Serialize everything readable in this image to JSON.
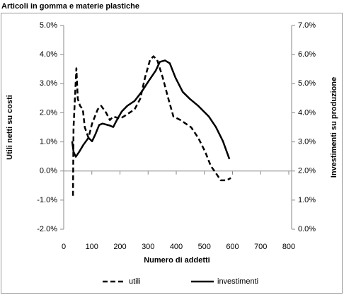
{
  "chart_data": {
    "type": "line",
    "title": "Articoli in gomma e materie plastiche",
    "xlabel": "Numero di addetti",
    "ylabel": "Utili netti su costi",
    "y2label": "Investimenti su produzione",
    "xlim": [
      0,
      800
    ],
    "xticks": [
      0,
      100,
      200,
      300,
      400,
      500,
      600,
      700,
      800
    ],
    "ylim": [
      -2,
      5
    ],
    "yticks": [
      {
        "value": -2,
        "label": "-2.0%"
      },
      {
        "value": -1,
        "label": "-1.0%"
      },
      {
        "value": 0,
        "label": "0.0%"
      },
      {
        "value": 1,
        "label": "1.0%"
      },
      {
        "value": 2,
        "label": "2.0%"
      },
      {
        "value": 3,
        "label": "3.0%"
      },
      {
        "value": 4,
        "label": "4.0%"
      },
      {
        "value": 5,
        "label": "5.0%"
      }
    ],
    "y2lim": [
      0,
      7
    ],
    "y2ticks": [
      {
        "value": 0,
        "label": "0.0%"
      },
      {
        "value": 1,
        "label": "1.0%"
      },
      {
        "value": 2,
        "label": "2.0%"
      },
      {
        "value": 3,
        "label": "3.0%"
      },
      {
        "value": 4,
        "label": "4.0%"
      },
      {
        "value": 5,
        "label": "5.0%"
      },
      {
        "value": 6,
        "label": "6.0%"
      },
      {
        "value": 7,
        "label": "7.0%"
      }
    ],
    "legend": "bottom",
    "series": [
      {
        "name": "utili",
        "color": "#000000",
        "dash": true,
        "x": [
          33,
          35,
          45,
          50,
          58,
          68,
          75,
          88,
          101,
          121,
          133,
          151,
          164,
          176,
          201,
          226,
          252,
          272,
          289,
          307,
          319,
          332,
          352,
          372,
          390,
          415,
          453,
          478,
          503,
          523,
          541,
          558,
          579,
          594
        ],
        "values": [
          -0.85,
          1.5,
          3.53,
          2.48,
          2.24,
          2.12,
          1.5,
          1.14,
          1.63,
          2.12,
          2.24,
          2.0,
          1.75,
          1.87,
          1.8,
          1.95,
          2.12,
          2.48,
          3.21,
          3.82,
          3.94,
          3.82,
          3.21,
          2.48,
          1.87,
          1.75,
          1.5,
          1.14,
          0.66,
          0.17,
          -0.07,
          -0.32,
          -0.32,
          -0.24
        ]
      },
      {
        "name": "investimenti",
        "color": "#000000",
        "dash": false,
        "axis": "y2",
        "x": [
          30,
          35,
          43,
          55,
          70,
          88,
          101,
          113,
          126,
          138,
          164,
          176,
          189,
          206,
          226,
          252,
          277,
          302,
          327,
          342,
          360,
          377,
          397,
          423,
          448,
          478,
          516,
          541,
          566,
          589
        ],
        "values": [
          3.02,
          2.66,
          2.49,
          2.66,
          2.9,
          3.14,
          3.02,
          3.27,
          3.58,
          3.63,
          3.56,
          3.51,
          3.75,
          4.04,
          4.24,
          4.41,
          4.72,
          5.09,
          5.45,
          5.75,
          5.8,
          5.7,
          5.21,
          4.72,
          4.48,
          4.24,
          3.87,
          3.51,
          3.02,
          2.41
        ]
      }
    ]
  }
}
